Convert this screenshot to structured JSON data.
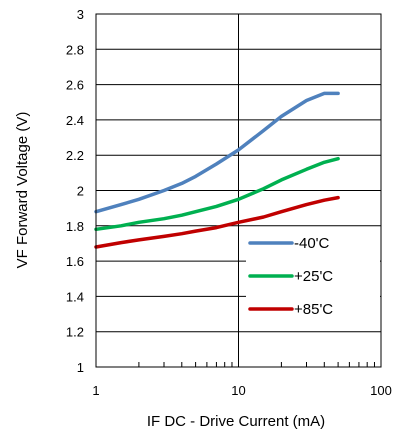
{
  "chart_data": {
    "type": "line",
    "xlabel": "IF DC - Drive Current (mA)",
    "ylabel": "VF Forward Voltage (V)",
    "xscale": "log",
    "xlim": [
      1,
      100
    ],
    "ylim": [
      1,
      3
    ],
    "xticks": [
      1,
      10,
      100
    ],
    "xtick_labels": [
      "1",
      "10",
      "100"
    ],
    "yticks": [
      1,
      1.2,
      1.4,
      1.6,
      1.8,
      2,
      2.2,
      2.4,
      2.6,
      2.8,
      3
    ],
    "ytick_labels": [
      "1",
      "1.2",
      "1.4",
      "1.6",
      "1.8",
      "2",
      "2.2",
      "2.4",
      "2.6",
      "2.8",
      "3"
    ],
    "grid": true,
    "legend_position": "lower-right",
    "series": [
      {
        "name": "-40'C",
        "color": "#4F81BD",
        "x": [
          1,
          1.5,
          2,
          3,
          4,
          5,
          7,
          10,
          15,
          20,
          30,
          40,
          50
        ],
        "y": [
          1.88,
          1.92,
          1.95,
          2.0,
          2.04,
          2.08,
          2.15,
          2.23,
          2.34,
          2.42,
          2.51,
          2.55,
          2.55
        ]
      },
      {
        "name": "+25'C",
        "color": "#00B050",
        "x": [
          1,
          1.5,
          2,
          3,
          4,
          5,
          7,
          10,
          15,
          20,
          30,
          40,
          50
        ],
        "y": [
          1.78,
          1.8,
          1.82,
          1.84,
          1.86,
          1.88,
          1.91,
          1.95,
          2.01,
          2.06,
          2.12,
          2.16,
          2.18
        ]
      },
      {
        "name": "+85'C",
        "color": "#C00000",
        "x": [
          1,
          1.5,
          2,
          3,
          4,
          5,
          7,
          10,
          15,
          20,
          30,
          40,
          50
        ],
        "y": [
          1.68,
          1.705,
          1.72,
          1.74,
          1.755,
          1.77,
          1.79,
          1.82,
          1.85,
          1.88,
          1.92,
          1.945,
          1.96
        ]
      }
    ]
  }
}
